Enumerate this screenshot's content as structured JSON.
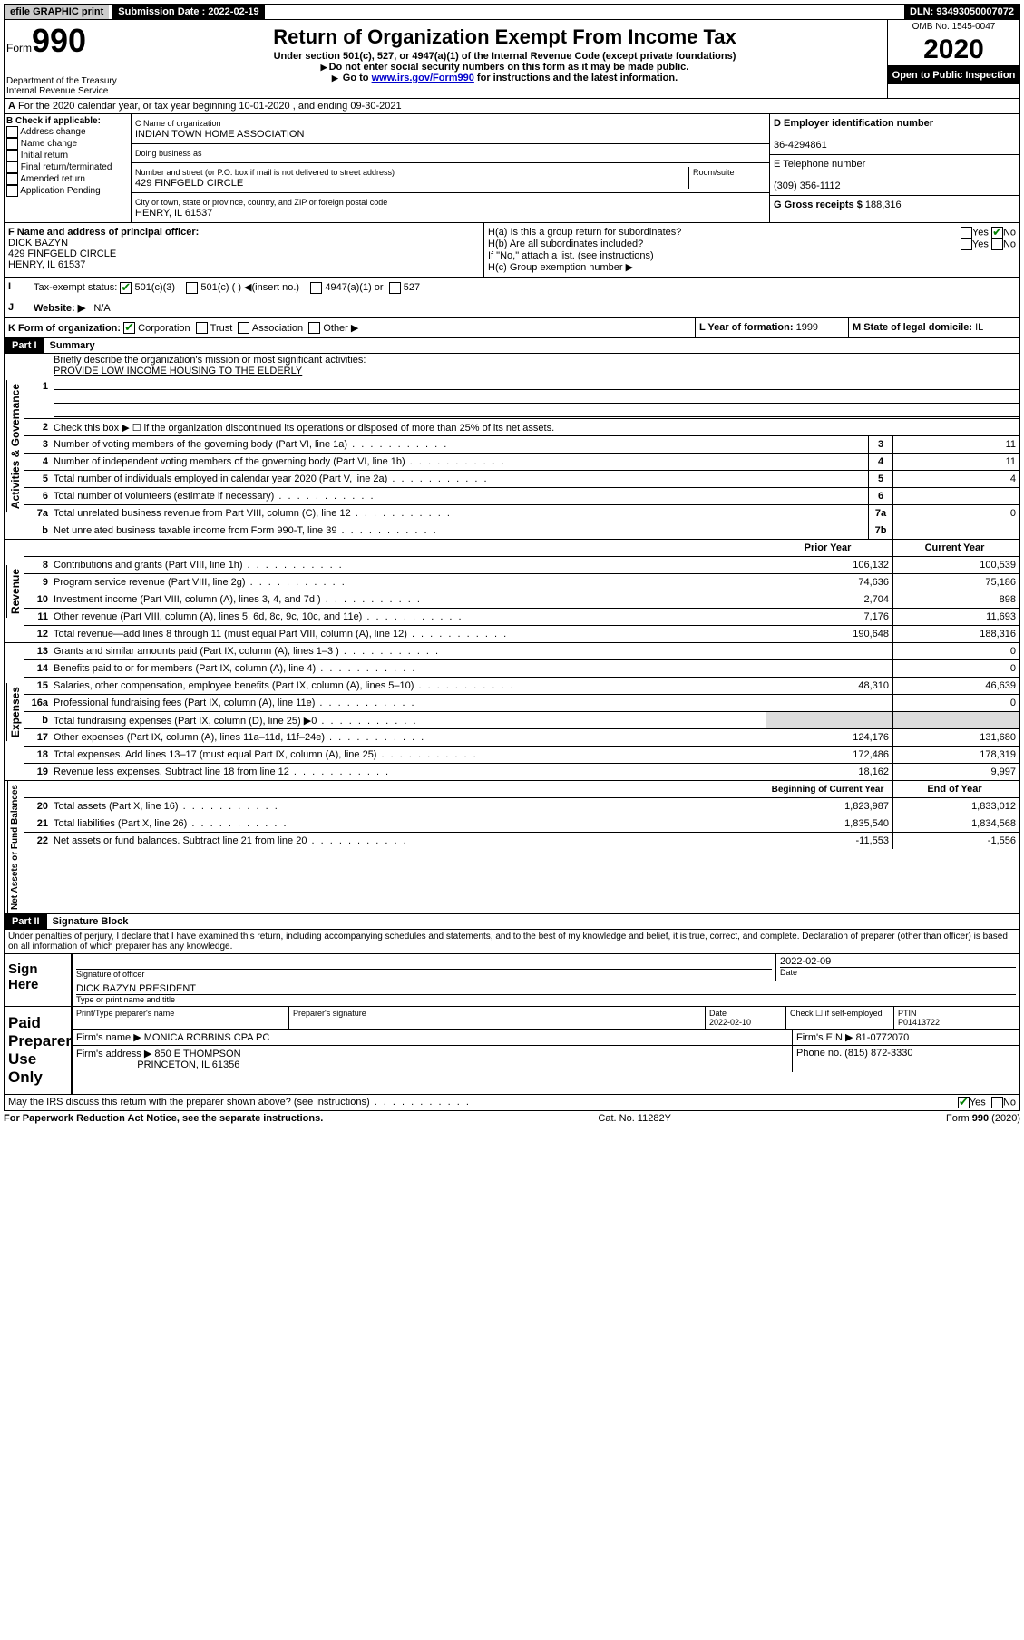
{
  "topbar": {
    "efile": "efile GRAPHIC print",
    "submission_label": "Submission Date : 2022-02-19",
    "dln_label": "DLN: 93493050007072"
  },
  "header": {
    "form_word": "Form",
    "form_num": "990",
    "dept": "Department of the Treasury\nInternal Revenue Service",
    "title": "Return of Organization Exempt From Income Tax",
    "sub1": "Under section 501(c), 527, or 4947(a)(1) of the Internal Revenue Code (except private foundations)",
    "sub2": "Do not enter social security numbers on this form as it may be made public.",
    "sub3_pre": "Go to ",
    "sub3_link": "www.irs.gov/Form990",
    "sub3_post": " for instructions and the latest information.",
    "omb": "OMB No. 1545-0047",
    "year": "2020",
    "open": "Open to Public Inspection"
  },
  "lineA": "For the 2020 calendar year, or tax year beginning 10-01-2020    , and ending 09-30-2021",
  "boxB": {
    "label": "B Check if applicable:",
    "items": [
      "Address change",
      "Name change",
      "Initial return",
      "Final return/terminated",
      "Amended return",
      "Application Pending"
    ]
  },
  "boxC": {
    "name_label": "C Name of organization",
    "name": "INDIAN TOWN HOME ASSOCIATION",
    "dba_label": "Doing business as",
    "addr_label": "Number and street (or P.O. box if mail is not delivered to street address)",
    "room_label": "Room/suite",
    "addr": "429 FINFGELD CIRCLE",
    "city_label": "City or town, state or province, country, and ZIP or foreign postal code",
    "city": "HENRY, IL  61537"
  },
  "boxD": {
    "label": "D Employer identification number",
    "ein": "36-4294861"
  },
  "boxE": {
    "label": "E Telephone number",
    "phone": "(309) 356-1112"
  },
  "boxG": {
    "label": "G Gross receipts $",
    "amount": "188,316"
  },
  "boxF": {
    "label": "F  Name and address of principal officer:",
    "name": "DICK BAZYN",
    "addr1": "429 FINFGELD CIRCLE",
    "addr2": "HENRY, IL  61537"
  },
  "boxH": {
    "a": "H(a)  Is this a group return for subordinates?",
    "b": "H(b)  Are all subordinates included?",
    "b_note": "If \"No,\" attach a list. (see instructions)",
    "c": "H(c)  Group exemption number ▶",
    "yes": "Yes",
    "no": "No"
  },
  "lineI": {
    "label": "Tax-exempt status:",
    "opt1": "501(c)(3)",
    "opt2": "501(c) (  ) ◀(insert no.)",
    "opt3": "4947(a)(1) or",
    "opt4": "527"
  },
  "lineJ": {
    "label": "Website: ▶",
    "val": "N/A"
  },
  "lineK": {
    "label": "K Form of organization:",
    "corp": "Corporation",
    "trust": "Trust",
    "assoc": "Association",
    "other": "Other ▶"
  },
  "lineL": {
    "label": "L Year of formation:",
    "val": "1999"
  },
  "lineM": {
    "label": "M State of legal domicile:",
    "val": "IL"
  },
  "part1": {
    "header": "Part I",
    "title": "Summary",
    "vlabel1": "Activities & Governance",
    "vlabel2": "Revenue",
    "vlabel3": "Expenses",
    "vlabel4": "Net Assets or Fund Balances",
    "l1": "Briefly describe the organization's mission or most significant activities:",
    "l1_val": "PROVIDE LOW INCOME HOUSING TO THE ELDERLY",
    "l2": "Check this box ▶ ☐  if the organization discontinued its operations or disposed of more than 25% of its net assets.",
    "lines_gov": [
      {
        "n": "3",
        "d": "Number of voting members of the governing body (Part VI, line 1a)",
        "b": "3",
        "v": "11"
      },
      {
        "n": "4",
        "d": "Number of independent voting members of the governing body (Part VI, line 1b)",
        "b": "4",
        "v": "11"
      },
      {
        "n": "5",
        "d": "Total number of individuals employed in calendar year 2020 (Part V, line 2a)",
        "b": "5",
        "v": "4"
      },
      {
        "n": "6",
        "d": "Total number of volunteers (estimate if necessary)",
        "b": "6",
        "v": ""
      },
      {
        "n": "7a",
        "d": "Total unrelated business revenue from Part VIII, column (C), line 12",
        "b": "7a",
        "v": "0"
      },
      {
        "n": "b",
        "d": "Net unrelated business taxable income from Form 990-T, line 39",
        "b": "7b",
        "v": ""
      }
    ],
    "col_prior": "Prior Year",
    "col_current": "Current Year",
    "lines_rev": [
      {
        "n": "8",
        "d": "Contributions and grants (Part VIII, line 1h)",
        "p": "106,132",
        "c": "100,539"
      },
      {
        "n": "9",
        "d": "Program service revenue (Part VIII, line 2g)",
        "p": "74,636",
        "c": "75,186"
      },
      {
        "n": "10",
        "d": "Investment income (Part VIII, column (A), lines 3, 4, and 7d )",
        "p": "2,704",
        "c": "898"
      },
      {
        "n": "11",
        "d": "Other revenue (Part VIII, column (A), lines 5, 6d, 8c, 9c, 10c, and 11e)",
        "p": "7,176",
        "c": "11,693"
      },
      {
        "n": "12",
        "d": "Total revenue—add lines 8 through 11 (must equal Part VIII, column (A), line 12)",
        "p": "190,648",
        "c": "188,316"
      }
    ],
    "lines_exp": [
      {
        "n": "13",
        "d": "Grants and similar amounts paid (Part IX, column (A), lines 1–3 )",
        "p": "",
        "c": "0"
      },
      {
        "n": "14",
        "d": "Benefits paid to or for members (Part IX, column (A), line 4)",
        "p": "",
        "c": "0"
      },
      {
        "n": "15",
        "d": "Salaries, other compensation, employee benefits (Part IX, column (A), lines 5–10)",
        "p": "48,310",
        "c": "46,639"
      },
      {
        "n": "16a",
        "d": "Professional fundraising fees (Part IX, column (A), line 11e)",
        "p": "",
        "c": "0"
      },
      {
        "n": "b",
        "d": "Total fundraising expenses (Part IX, column (D), line 25) ▶0",
        "p": "gray",
        "c": "gray"
      },
      {
        "n": "17",
        "d": "Other expenses (Part IX, column (A), lines 11a–11d, 11f–24e)",
        "p": "124,176",
        "c": "131,680"
      },
      {
        "n": "18",
        "d": "Total expenses. Add lines 13–17 (must equal Part IX, column (A), line 25)",
        "p": "172,486",
        "c": "178,319"
      },
      {
        "n": "19",
        "d": "Revenue less expenses. Subtract line 18 from line 12",
        "p": "18,162",
        "c": "9,997"
      }
    ],
    "col_begin": "Beginning of Current Year",
    "col_end": "End of Year",
    "lines_net": [
      {
        "n": "20",
        "d": "Total assets (Part X, line 16)",
        "p": "1,823,987",
        "c": "1,833,012"
      },
      {
        "n": "21",
        "d": "Total liabilities (Part X, line 26)",
        "p": "1,835,540",
        "c": "1,834,568"
      },
      {
        "n": "22",
        "d": "Net assets or fund balances. Subtract line 21 from line 20",
        "p": "-11,553",
        "c": "-1,556"
      }
    ]
  },
  "part2": {
    "header": "Part II",
    "title": "Signature Block",
    "decl": "Under penalties of perjury, I declare that I have examined this return, including accompanying schedules and statements, and to the best of my knowledge and belief, it is true, correct, and complete. Declaration of preparer (other than officer) is based on all information of which preparer has any knowledge.",
    "sign_here": "Sign Here",
    "sig_officer": "Signature of officer",
    "date": "Date",
    "sig_date": "2022-02-09",
    "officer_name": "DICK BAZYN PRESIDENT",
    "type_name": "Type or print name and title",
    "paid": "Paid Preparer Use Only",
    "prep_name_label": "Print/Type preparer's name",
    "prep_sig_label": "Preparer's signature",
    "prep_date": "2022-02-10",
    "check_self": "Check ☐ if self-employed",
    "ptin_label": "PTIN",
    "ptin": "P01413722",
    "firm_name_label": "Firm's name    ▶",
    "firm_name": "MONICA ROBBINS CPA PC",
    "firm_ein_label": "Firm's EIN ▶",
    "firm_ein": "81-0772070",
    "firm_addr_label": "Firm's address ▶",
    "firm_addr1": "850 E THOMPSON",
    "firm_addr2": "PRINCETON, IL  61356",
    "firm_phone_label": "Phone no.",
    "firm_phone": "(815) 872-3330",
    "discuss": "May the IRS discuss this return with the preparer shown above? (see instructions)"
  },
  "footer": {
    "paperwork": "For Paperwork Reduction Act Notice, see the separate instructions.",
    "cat": "Cat. No. 11282Y",
    "form": "Form 990 (2020)"
  }
}
